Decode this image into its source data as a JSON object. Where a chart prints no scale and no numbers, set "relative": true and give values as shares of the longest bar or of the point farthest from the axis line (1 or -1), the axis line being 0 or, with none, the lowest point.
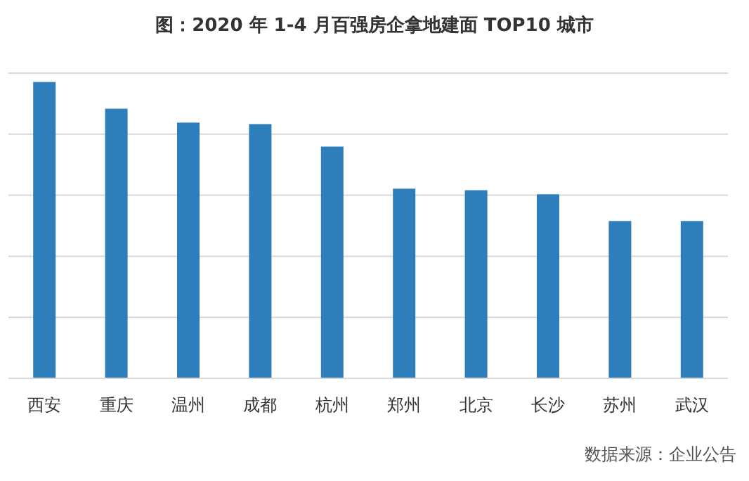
{
  "chart_data": {
    "type": "bar",
    "title": "图：2020 年 1-4 月百强房企拿地建面 TOP10 城市",
    "categories": [
      "西安",
      "重庆",
      "温州",
      "成都",
      "杭州",
      "郑州",
      "北京",
      "长沙",
      "苏州",
      "武汉"
    ],
    "values": [
      1,
      0.91,
      0.863,
      0.858,
      0.782,
      0.64,
      0.635,
      0.621,
      0.531,
      0.531
    ],
    "color": "#2f7ebc",
    "relative": true,
    "grid": "y",
    "annotations": [
      "数据来源：企业公告"
    ]
  }
}
